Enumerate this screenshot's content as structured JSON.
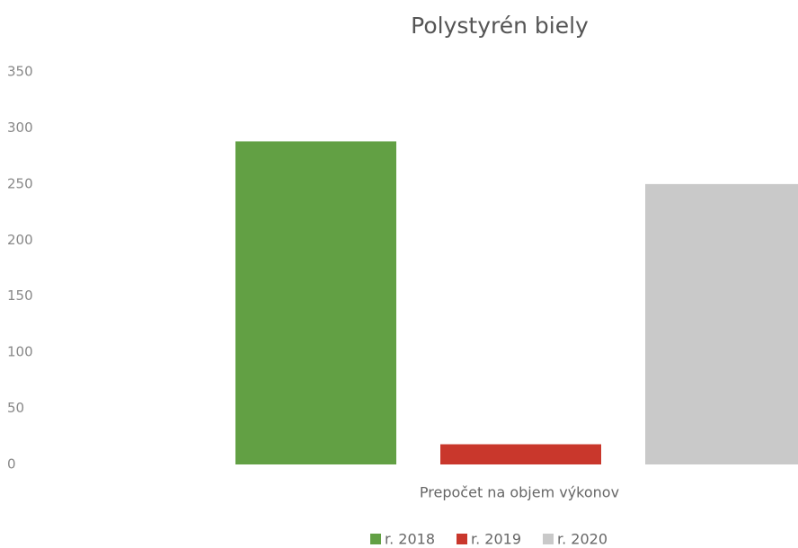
{
  "chart_data": {
    "type": "bar",
    "title": "Polystyrén biely",
    "categories": [
      "Prepočet na objem výkonov"
    ],
    "series": [
      {
        "name": "r. 2018",
        "color": "#62a044",
        "values": [
          288
        ]
      },
      {
        "name": "r. 2019",
        "color": "#c9372c",
        "values": [
          18
        ]
      },
      {
        "name": "r. 2020",
        "color": "#c9c9c9",
        "values": [
          250
        ]
      }
    ],
    "ylim": [
      0,
      350
    ],
    "yticks": [
      0,
      50,
      100,
      150,
      200,
      250,
      300,
      350
    ],
    "grid": false,
    "legend": "bottom"
  }
}
